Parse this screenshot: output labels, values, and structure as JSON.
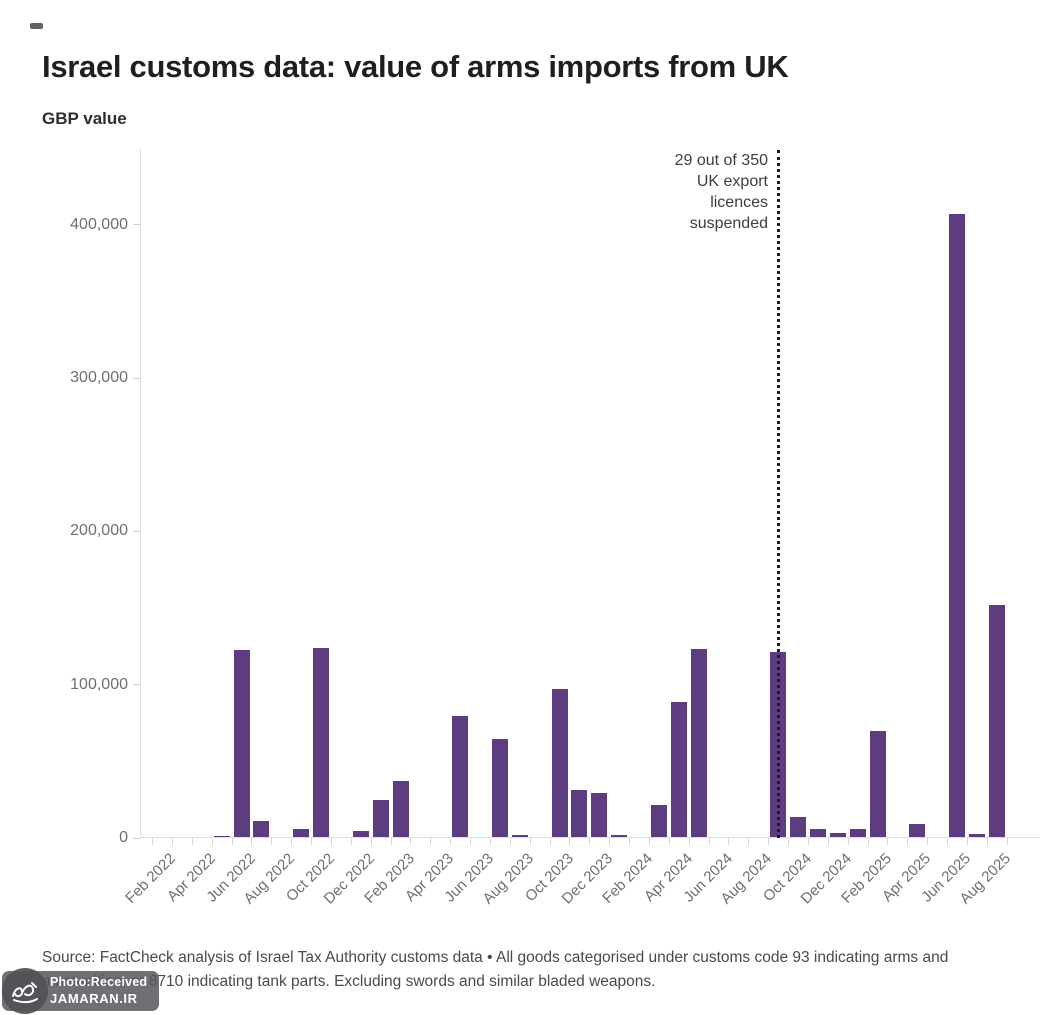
{
  "page": {
    "title": "Israel customs data: value of arms imports from UK",
    "subtitle": "GBP value",
    "source_note": "Source: FactCheck analysis of Israel Tax Authority customs data • All goods categorised under customs code 93 indicating arms and ammunition, or 8710 indicating tank parts. Excluding swords and similar bladed weapons."
  },
  "watermark": {
    "logo": "jamaran-calligraphy-logo",
    "line1": "Photo:Received",
    "line2": "JAMARAN.IR"
  },
  "chart_data": {
    "type": "bar",
    "title": "Israel customs data: value of arms imports from UK",
    "xlabel": "",
    "ylabel": "GBP value",
    "ylim": [
      0,
      450000
    ],
    "grid": "off",
    "legend": "none",
    "bar_color": "#5d3d80",
    "label_every": 2,
    "y_ticks": [
      {
        "label": "0",
        "value": 0
      },
      {
        "label": "100,000",
        "value": 100000
      },
      {
        "label": "200,000",
        "value": 200000
      },
      {
        "label": "300,000",
        "value": 300000
      },
      {
        "label": "400,000",
        "value": 400000
      }
    ],
    "categories": [
      "Feb 2022",
      "Mar 2022",
      "Apr 2022",
      "May 2022",
      "Jun 2022",
      "Jul 2022",
      "Aug 2022",
      "Sep 2022",
      "Oct 2022",
      "Nov 2022",
      "Dec 2022",
      "Jan 2023",
      "Feb 2023",
      "Mar 2023",
      "Apr 2023",
      "May 2023",
      "Jun 2023",
      "Jul 2023",
      "Aug 2023",
      "Sep 2023",
      "Oct 2023",
      "Nov 2023",
      "Dec 2023",
      "Jan 2024",
      "Feb 2024",
      "Mar 2024",
      "Apr 2024",
      "May 2024",
      "Jun 2024",
      "Jul 2024",
      "Aug 2024",
      "Sep 2024",
      "Oct 2024",
      "Nov 2024",
      "Dec 2024",
      "Jan 2025",
      "Feb 2025",
      "Mar 2025",
      "Apr 2025",
      "May 2025",
      "Jun 2025",
      "Jul 2025",
      "Aug 2025"
    ],
    "values": [
      0,
      0,
      0,
      800,
      122000,
      10500,
      0,
      5000,
      123500,
      0,
      3700,
      24000,
      36500,
      0,
      0,
      79000,
      0,
      64000,
      1000,
      0,
      96500,
      30500,
      29000,
      1500,
      0,
      21000,
      88000,
      122500,
      0,
      0,
      0,
      120500,
      13000,
      5500,
      2500,
      5500,
      69000,
      0,
      8500,
      0,
      406000,
      2000,
      151500
    ],
    "annotation": {
      "text": "29 out of 350\nUK export\nlicences\nsuspended",
      "x_category": "Sep 2024",
      "line_style": "dotted"
    }
  }
}
